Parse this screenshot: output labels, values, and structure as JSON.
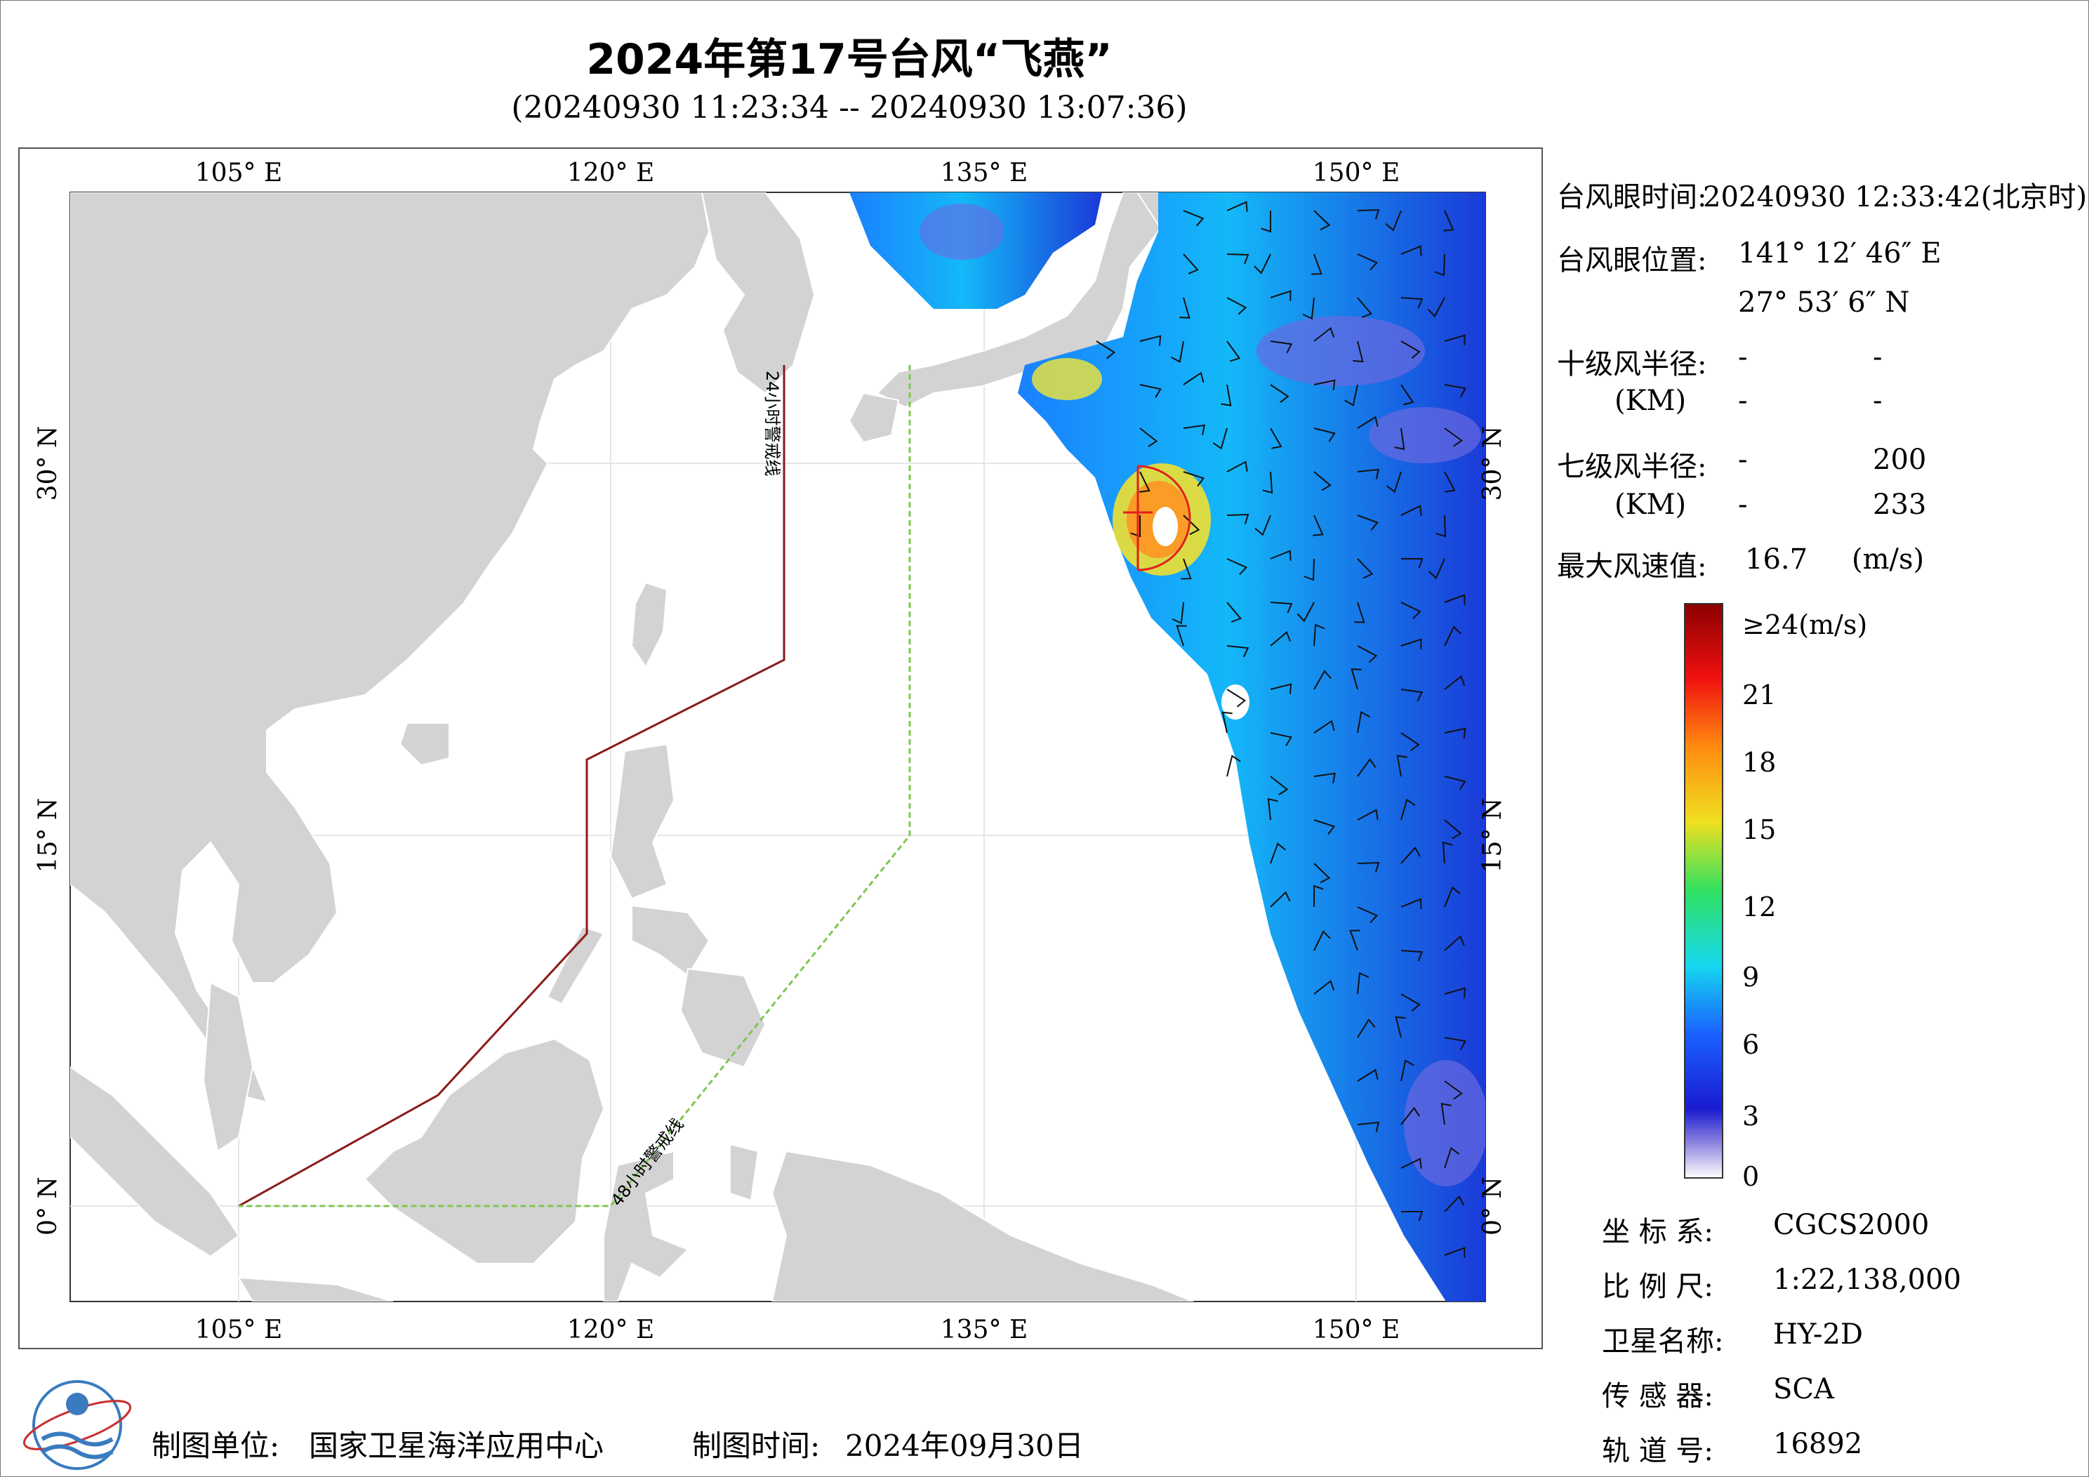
{
  "title": "2024年第17号台风“飞燕”",
  "subtitle": "(20240930 11:23:34 -- 20240930 13:07:36)",
  "map": {
    "lon_ticks": [
      "105° E",
      "120° E",
      "135° E",
      "150° E"
    ],
    "lat_ticks": [
      "30° N",
      "15° N",
      "0° N"
    ],
    "line_24h": "24小时警戒线",
    "line_48h": "48小时警戒线",
    "colors": {
      "land": "#d3d3d3",
      "sea": "#ffffff",
      "line_24h": "#8b1a1a",
      "line_48h": "#7ec850",
      "eye": "#e02020"
    }
  },
  "info": {
    "eye_time_label": "台风眼时间:",
    "eye_time_value": "20240930 12:33:42(北京时)",
    "eye_pos_label": "台风眼位置:",
    "eye_lon": "141° 12′ 46″ E",
    "eye_lat": "27° 53′ 6″ N",
    "r10_label": "十级风半径:",
    "r10_unit": "(KM)",
    "r10_values": [
      "-",
      "-",
      "-",
      "-"
    ],
    "r7_label": "七级风半径:",
    "r7_unit": "(KM)",
    "r7_values": [
      "-",
      "200",
      "-",
      "233"
    ],
    "max_wind_label": "最大风速值:",
    "max_wind_value": "16.7",
    "max_wind_unit": "(m/s)"
  },
  "colorbar": {
    "labels": [
      "≥24(m/s)",
      "21",
      "18",
      "15",
      "12",
      "9",
      "6",
      "3",
      "0"
    ]
  },
  "meta": {
    "crs_label": "坐 标 系:",
    "crs_value": "CGCS2000",
    "scale_label": "比 例 尺:",
    "scale_value": "1:22,138,000",
    "sat_label": "卫星名称:",
    "sat_value": "HY-2D",
    "sensor_label": "传 感 器:",
    "sensor_value": "SCA",
    "orbit_label": "轨 道 号:",
    "orbit_value": "16892"
  },
  "footer": {
    "unit_label": "制图单位:",
    "unit_value": "国家卫星海洋应用中心",
    "time_label": "制图时间:",
    "time_value": "2024年09月30日"
  }
}
